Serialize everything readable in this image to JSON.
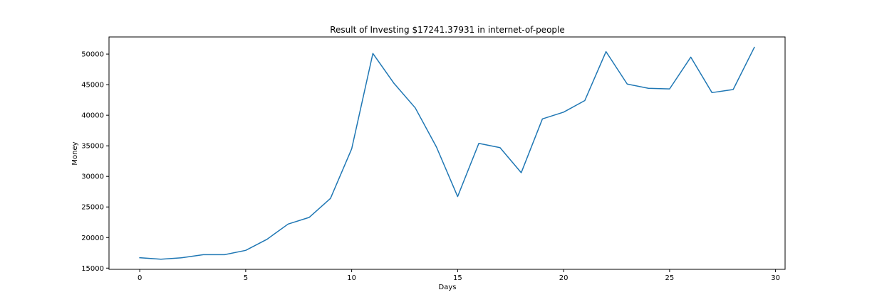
{
  "chart_data": {
    "type": "line",
    "title": "Result of Investing $17241.37931 in internet-of-people",
    "xlabel": "Days",
    "ylabel": "Money",
    "xlim": [
      -1.45,
      30.45
    ],
    "ylim": [
      14800,
      52800
    ],
    "xticks": [
      0,
      5,
      10,
      15,
      20,
      25,
      30
    ],
    "yticks": [
      15000,
      20000,
      25000,
      30000,
      35000,
      40000,
      45000,
      50000
    ],
    "grid": false,
    "line_color": "#1f77b4",
    "x": [
      0,
      1,
      2,
      3,
      4,
      5,
      6,
      7,
      8,
      9,
      10,
      11,
      12,
      13,
      14,
      15,
      16,
      17,
      18,
      19,
      20,
      21,
      22,
      23,
      24,
      25,
      26,
      27,
      28,
      29
    ],
    "series": [
      {
        "values": [
          16700,
          16450,
          16700,
          17200,
          17200,
          17900,
          19700,
          22200,
          23300,
          26400,
          34500,
          50100,
          45200,
          41200,
          34800,
          26700,
          35400,
          34700,
          30600,
          39400,
          40500,
          42400,
          50400,
          45100,
          44400,
          44300,
          49500,
          43700,
          44200,
          51100
        ]
      }
    ]
  }
}
